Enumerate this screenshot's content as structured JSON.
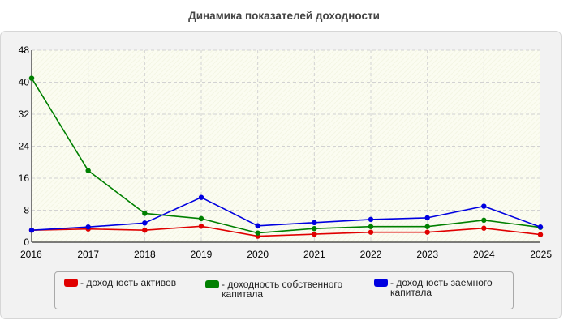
{
  "page": {
    "title": "Динамика показателей доходности"
  },
  "chart_data": {
    "type": "line",
    "title": "Динамика показателей доходности",
    "xlabel": "",
    "ylabel": "",
    "x": [
      "2016",
      "2017",
      "2018",
      "2019",
      "2020",
      "2021",
      "2022",
      "2023",
      "2024",
      "2025"
    ],
    "ylim": [
      0,
      48
    ],
    "yticks": [
      0,
      8,
      16,
      24,
      32,
      40,
      48
    ],
    "grid": true,
    "legend_position": "bottom",
    "series": [
      {
        "key": "assets",
        "name": "- доходность активов",
        "color": "#e00000",
        "values": [
          3.0,
          3.3,
          3.0,
          4.0,
          1.5,
          2.0,
          2.5,
          2.5,
          3.5,
          1.9
        ]
      },
      {
        "key": "equity",
        "name": "- доходность собственного\nкапитала",
        "color": "#008000",
        "values": [
          41.0,
          17.9,
          7.2,
          5.9,
          2.3,
          3.4,
          3.9,
          3.9,
          5.5,
          3.7
        ]
      },
      {
        "key": "debt",
        "name": "- доходность заемного\nкапитала",
        "color": "#0000e0",
        "values": [
          3.0,
          3.8,
          4.8,
          11.2,
          4.1,
          4.9,
          5.7,
          6.1,
          9.0,
          3.8
        ]
      }
    ]
  }
}
